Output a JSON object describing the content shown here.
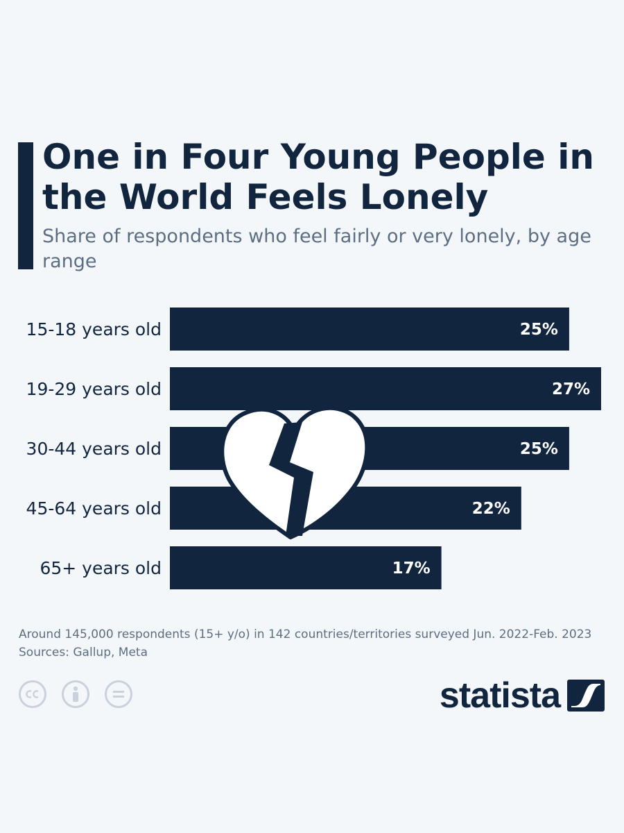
{
  "header": {
    "title": "One in Four Young People in the World Feels Lonely",
    "subtitle": "Share of respondents who feel fairly or very lonely, by age range"
  },
  "chart_data": {
    "type": "bar",
    "orientation": "horizontal",
    "title": "One in Four Young People in the World Feels Lonely",
    "subtitle": "Share of respondents who feel fairly or very lonely, by age range",
    "categories": [
      "15-18 years old",
      "19-29 years old",
      "30-44 years old",
      "45-64 years old",
      "65+ years old"
    ],
    "values": [
      25,
      27,
      25,
      22,
      17
    ],
    "value_labels": [
      "25%",
      "27%",
      "25%",
      "22%",
      "17%"
    ],
    "unit": "%",
    "xlim": [
      0,
      27
    ],
    "grid": false,
    "legend": "none",
    "bar_color": "#12253e"
  },
  "footer": {
    "note": "Around 145,000 respondents (15+ y/o) in 142 countries/territories surveyed Jun. 2022-Feb. 2023",
    "sources": "Sources: Gallup, Meta",
    "brand": "statista"
  },
  "icons": {
    "decoration": "broken-heart-icon",
    "license": [
      "creative-commons-icon",
      "attribution-icon",
      "no-derivatives-icon"
    ],
    "logo": "statista-logo-icon"
  },
  "colors": {
    "background": "#f4f7fa",
    "primary": "#12253e",
    "secondary_text": "#5c6e82",
    "icon_muted": "#c9d2dc"
  }
}
